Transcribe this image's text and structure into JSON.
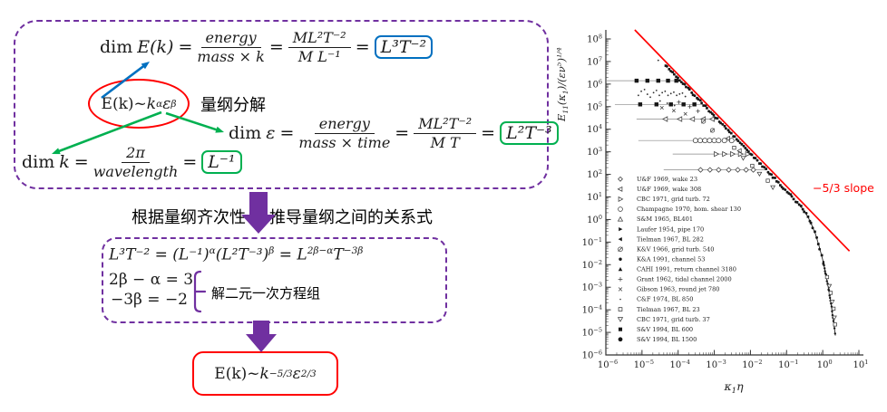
{
  "left_panel": {
    "colors": {
      "dashed_box": "#7030A0",
      "block_arrow": "#7030A0",
      "ellipse": "#FF0000",
      "blue_arrow": "#0070C0",
      "green_arrow": "#00B050",
      "result_blue": "#0070C0",
      "result_green": "#00B050"
    },
    "box1": {
      "dim_E": {
        "prefix": "dim",
        "lhs": "E(k)",
        "eq": "=",
        "num1": "energy",
        "den1": "mass × k",
        "eq2": "=",
        "num2": "ML²T⁻²",
        "den2": "M L⁻¹",
        "eq3": "=",
        "result": "L³T⁻²"
      },
      "hypothesis": {
        "base": "E(k)~",
        "var1": "k",
        "exp1": "α",
        "var2": "ε",
        "exp2": "β"
      },
      "decompose_label": "量纲分解",
      "dim_eps": {
        "prefix": "dim",
        "lhs": "ε",
        "eq": "=",
        "num1": "energy",
        "den1": "mass × time",
        "eq2": "=",
        "num2": "ML²T⁻²",
        "den2": "M T",
        "eq3": "=",
        "result": "L²T⁻³"
      },
      "dim_k": {
        "prefix": "dim",
        "lhs": "k",
        "eq": "=",
        "num1": "2π",
        "den1": "wavelength",
        "eq2": "=",
        "result": "L⁻¹"
      }
    },
    "between": {
      "left_text": "根据量纲齐次性",
      "right_text": "推导量纲之间的关系式"
    },
    "box2": {
      "line1": {
        "seg1": "L³T⁻² = (L⁻¹)",
        "sup1": "α",
        "seg2": "(L²T⁻³)",
        "sup2": "β",
        "seg3": " = L",
        "sup3": "2β−α",
        "seg4": "T",
        "sup4": "−3β"
      },
      "line2": "2β − α = 3",
      "line3": "−3β = −2",
      "brace_label": "解二元一次方程组"
    },
    "conclusion": {
      "base": "E(k)~",
      "var1": "k",
      "exp1": "−5/3",
      "var2": " ε",
      "exp2": "2/3"
    }
  },
  "chart_data": {
    "type": "scatter",
    "xlabel": "κ1η",
    "ylabel": "E11(κ1)/(εν5)^(1/4)",
    "xlabel_parts": [
      {
        "t": "κ"
      },
      {
        "t": "1",
        "pos": "sub"
      },
      {
        "t": "η"
      }
    ],
    "ylabel_parts": [
      {
        "t": "E"
      },
      {
        "t": "11",
        "pos": "sub"
      },
      {
        "t": "(κ"
      },
      {
        "t": "1",
        "pos": "sub"
      },
      {
        "t": ")/(εν"
      },
      {
        "t": "5",
        "pos": "sup"
      },
      {
        "t": ")"
      },
      {
        "t": "1/4",
        "pos": "sup"
      }
    ],
    "x_log_range": [
      -6,
      1
    ],
    "y_log_range": [
      -6,
      8
    ],
    "x_tick_exponents": [
      -6,
      -5,
      -4,
      -3,
      -2,
      -1,
      0,
      1
    ],
    "y_tick_exponents": [
      8,
      7,
      6,
      5,
      4,
      3,
      2,
      1,
      0,
      -1,
      -2,
      -3,
      -4,
      -5,
      -6
    ],
    "grid": false,
    "ref_line": {
      "log_points": [
        [
          -5.2,
          8.4
        ],
        [
          0.74,
          -1.4
        ]
      ],
      "color": "#FF0000",
      "slope_label": "−5/3 slope"
    },
    "main_curve_log": [
      [
        -4.35,
        6.84
      ],
      [
        -4.1,
        6.42
      ],
      [
        -3.85,
        6.01
      ],
      [
        -3.6,
        5.59
      ],
      [
        -3.35,
        5.17
      ],
      [
        -3.1,
        4.76
      ],
      [
        -2.85,
        4.34
      ],
      [
        -2.6,
        3.92
      ],
      [
        -2.35,
        3.51
      ],
      [
        -2.1,
        3.09
      ],
      [
        -1.85,
        2.67
      ],
      [
        -1.6,
        2.26
      ],
      [
        -1.35,
        1.84
      ],
      [
        -1.1,
        1.42
      ],
      [
        -0.9,
        1.08
      ],
      [
        -0.8,
        0.91
      ],
      [
        -0.7,
        0.74
      ],
      [
        -0.6,
        0.56
      ],
      [
        -0.5,
        0.35
      ],
      [
        -0.4,
        0.09
      ],
      [
        -0.3,
        -0.26
      ],
      [
        -0.2,
        -0.65
      ],
      [
        -0.1,
        -1.19
      ],
      [
        0,
        -1.78
      ],
      [
        0.1,
        -2.53
      ],
      [
        0.2,
        -3.42
      ],
      [
        0.3,
        -4.52
      ],
      [
        0.35,
        -5.14
      ]
    ],
    "branches": [
      {
        "logy": 6.15,
        "x1": -6.0,
        "x2": -3.94,
        "marker": "square-filled",
        "marker_xs": [
          -5.15,
          -4.85,
          -4.55,
          -4.28,
          -4.05
        ]
      },
      {
        "logy": 5.1,
        "x1": -5.75,
        "x2": -3.31,
        "marker": "square-filled",
        "marker_xs": [
          -5.05,
          -4.6,
          -4.2,
          -3.85,
          -3.55
        ]
      },
      {
        "logy": 4.45,
        "x1": -5.15,
        "x2": -2.92,
        "marker": "tri-left-open",
        "marker_xs": [
          -4.35,
          -3.95,
          -3.6,
          -3.3,
          -3.05
        ]
      },
      {
        "logy": 3.5,
        "x1": -5.1,
        "x2": -2.35,
        "marker": "circle-open",
        "marker_xs": [
          -3.52,
          -3.39,
          -3.26,
          -3.13,
          -3.0,
          -2.88,
          -2.72,
          -2.52
        ]
      },
      {
        "logy": 2.9,
        "x1": -4.15,
        "x2": -1.99,
        "marker": "tri-right-open",
        "marker_xs": [
          -2.95,
          -2.72,
          -2.5,
          -2.28,
          -2.08
        ]
      },
      {
        "logy": 2.2,
        "x1": -4.4,
        "x2": -1.57,
        "marker": "diamond-open",
        "marker_xs": [
          -3.38,
          -3.12,
          -2.88,
          -2.6,
          -2.35,
          -2.12,
          -1.92
        ]
      }
    ],
    "scatter_dots": [
      [
        -4.55,
        7.05
      ],
      [
        -5.1,
        5.5
      ],
      [
        -5.02,
        5.68
      ],
      [
        -4.93,
        5.76
      ],
      [
        -4.85,
        5.55
      ],
      [
        -4.77,
        5.42
      ],
      [
        -4.68,
        5.62
      ],
      [
        -4.6,
        5.72
      ],
      [
        -4.52,
        5.5
      ],
      [
        -4.44,
        5.62
      ],
      [
        -4.36,
        5.68
      ],
      [
        -4.28,
        5.5
      ],
      [
        -4.2,
        5.58
      ],
      [
        -4.12,
        5.64
      ],
      [
        -4.04,
        5.5
      ],
      [
        -3.96,
        5.56
      ],
      [
        -3.88,
        5.6
      ],
      [
        -3.8,
        5.45
      ],
      [
        -4.5,
        5.25
      ],
      [
        -4.3,
        5.15
      ],
      [
        -4.1,
        5.05
      ]
    ],
    "extra_markers": [
      {
        "sym": "x",
        "pts": [
          [
            -4.45,
            4.95
          ],
          [
            -4.12,
            4.82
          ],
          [
            -3.8,
            4.68
          ]
        ]
      },
      {
        "sym": "plus",
        "pts": [
          [
            -3.98,
            5.2
          ],
          [
            -3.68,
            5.0
          ],
          [
            -3.45,
            4.8
          ]
        ]
      },
      {
        "sym": "tri-down-open",
        "pts": [
          [
            -2.2,
            2.72
          ],
          [
            -1.75,
            2.02
          ],
          [
            -1.38,
            1.42
          ],
          [
            0.18,
            -2.95
          ],
          [
            0.26,
            -3.65
          ],
          [
            0.32,
            -4.35
          ]
        ]
      },
      {
        "sym": "square-open-small",
        "pts": [
          [
            -2.45,
            3.18
          ],
          [
            -1.95,
            2.38
          ],
          [
            -1.52,
            1.72
          ],
          [
            0.12,
            -2.55
          ],
          [
            0.22,
            -3.25
          ],
          [
            0.3,
            -3.95
          ],
          [
            0.34,
            -4.65
          ]
        ]
      },
      {
        "sym": "tri-left-open",
        "pts": [
          [
            -2.62,
            3.6
          ],
          [
            -2.3,
            3.05
          ]
        ]
      },
      {
        "sym": "circle-slash",
        "pts": [
          [
            -3.3,
            4.35
          ],
          [
            -3.05,
            3.95
          ]
        ]
      }
    ],
    "legend": [
      {
        "sym": "diamond-open",
        "label": "U&F 1969, wake 23"
      },
      {
        "sym": "tri-left-open",
        "label": "U&F 1969, wake 308"
      },
      {
        "sym": "tri-right-open",
        "label": "CBC 1971, grid turb. 72"
      },
      {
        "sym": "circle-open",
        "label": "Champagne 1970, hom. shear 130"
      },
      {
        "sym": "tri-up-open",
        "label": "S&M 1965, BL401"
      },
      {
        "sym": "tri-right-filled",
        "label": "Laufer 1954, pipe 170"
      },
      {
        "sym": "tri-left-filled",
        "label": "Tielman 1967, BL 282"
      },
      {
        "sym": "circle-slash",
        "label": "K&V 1966, grid turb. 540"
      },
      {
        "sym": "circle-filled-small",
        "label": "K&A 1991, channel 53"
      },
      {
        "sym": "tri-up-filled",
        "label": "CAHI 1991, return channel 3180"
      },
      {
        "sym": "plus",
        "label": "Grant 1962, tidal channel 2000"
      },
      {
        "sym": "x",
        "label": "Gibson 1963, round jet 780"
      },
      {
        "sym": "dot",
        "label": "C&F 1974, BL 850"
      },
      {
        "sym": "square-open-small",
        "label": "Tielman 1967, BL 23"
      },
      {
        "sym": "tri-down-open",
        "label": "CBC 1971, grid turb. 37"
      },
      {
        "sym": "square-filled",
        "label": "S&V 1994, BL 600"
      },
      {
        "sym": "circle-filled",
        "label": "S&V 1994, BL 1500"
      }
    ]
  }
}
